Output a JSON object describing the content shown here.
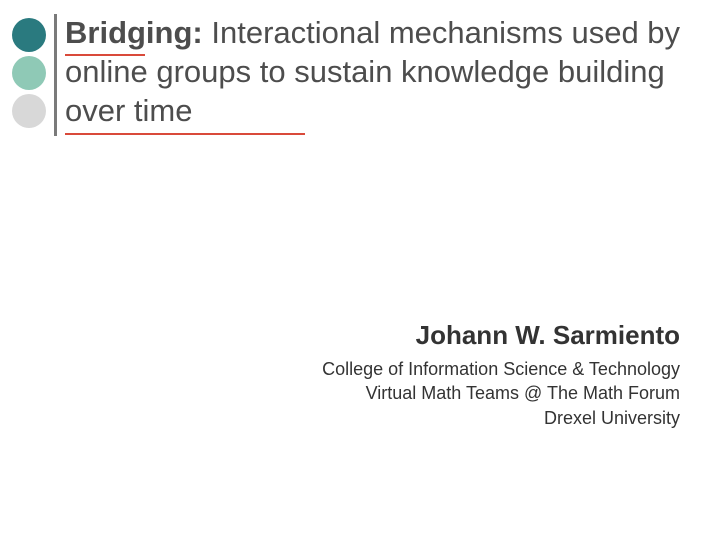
{
  "bullets": {
    "colors": [
      "#2a7a7f",
      "#8fc9b6",
      "#d8d8d8"
    ],
    "size": 34
  },
  "divider": {
    "color": "#7a7a7a"
  },
  "underline": {
    "color": "#d94a3a"
  },
  "title": {
    "bold": "Bridging:",
    "rest": " Interactional mechanisms used by online groups to sustain knowledge building over time",
    "color": "#4d4d4d",
    "fontsize": 31
  },
  "author": {
    "name": "Johann W. Sarmiento",
    "lines": [
      "College of Information Science & Technology",
      "Virtual Math Teams @ The Math Forum",
      "Drexel University"
    ],
    "name_fontsize": 26,
    "line_fontsize": 18
  },
  "background_color": "#ffffff"
}
